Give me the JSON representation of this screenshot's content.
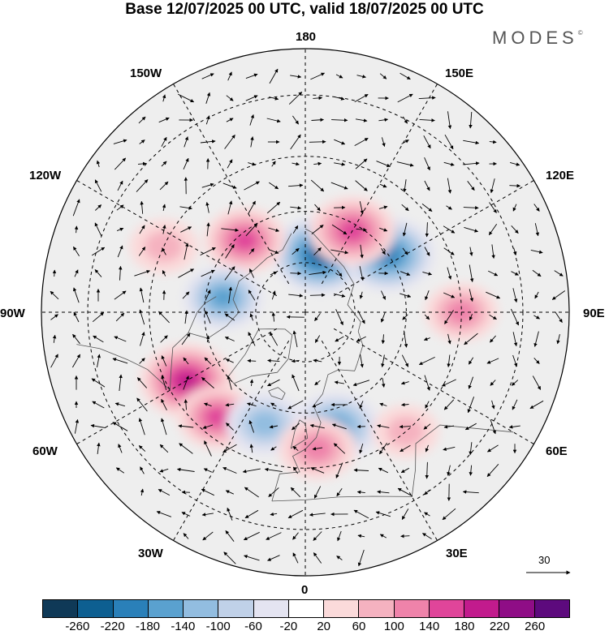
{
  "title": "Base 12/07/2025 00 UTC, valid 18/07/2025 00 UTC",
  "brand": {
    "name": "MODES",
    "mark": "©"
  },
  "longitude_labels": {
    "top": "180",
    "bottom": "0",
    "left": "90W",
    "right": "90E",
    "upper_left_1": "150W",
    "upper_left_2": "120W",
    "upper_right_1": "150E",
    "upper_right_2": "120E",
    "lower_left_1": "60W",
    "lower_left_2": "30W",
    "lower_right_1": "60E",
    "lower_right_2": "30E"
  },
  "reference_vector": {
    "value": "30"
  },
  "colorbar": {
    "ticks": [
      "-260",
      "-220",
      "-180",
      "-140",
      "-100",
      "-60",
      "-20",
      "20",
      "60",
      "100",
      "140",
      "180",
      "220",
      "260"
    ],
    "colors": [
      "#0f3957",
      "#0d5f91",
      "#2a80b9",
      "#5aa1cf",
      "#92bde0",
      "#c0d1e8",
      "#e4e4f1",
      "#ffffff",
      "#fbdada",
      "#f5b2c0",
      "#ef83aa",
      "#e0459a",
      "#c21b8d",
      "#8f0d86",
      "#5d0a7d"
    ]
  },
  "chart_data": {
    "type": "heatmap",
    "projection": "north polar stereographic",
    "colorbar_range": [
      -260,
      260
    ],
    "anomaly_features": [
      {
        "lon": 165,
        "lat": 72,
        "sign": "negative",
        "value": -200
      },
      {
        "lon": 125,
        "lat": 60,
        "sign": "negative",
        "value": -180
      },
      {
        "lon": 150,
        "lat": 62,
        "sign": "positive",
        "value": 150
      },
      {
        "lon": -140,
        "lat": 62,
        "sign": "positive",
        "value": 130
      },
      {
        "lon": -100,
        "lat": 65,
        "sign": "negative",
        "value": -120
      },
      {
        "lon": -60,
        "lat": 50,
        "sign": "positive",
        "value": 180
      },
      {
        "lon": -40,
        "lat": 50,
        "sign": "positive",
        "value": 120
      },
      {
        "lon": -20,
        "lat": 55,
        "sign": "negative",
        "value": -110
      },
      {
        "lon": 15,
        "lat": 55,
        "sign": "negative",
        "value": -150
      },
      {
        "lon": 5,
        "lat": 50,
        "sign": "positive",
        "value": 110
      },
      {
        "lon": 90,
        "lat": 45,
        "sign": "positive",
        "value": 90
      },
      {
        "lon": -115,
        "lat": 45,
        "sign": "positive",
        "value": 70
      },
      {
        "lon": 40,
        "lat": 45,
        "sign": "positive",
        "value": 60
      }
    ]
  }
}
